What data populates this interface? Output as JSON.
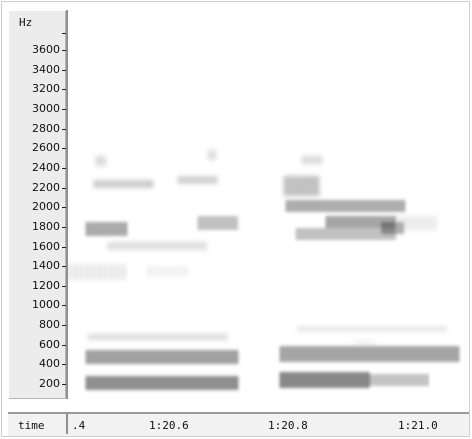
{
  "y_axis": {
    "unit": "Hz",
    "labels": [
      "3600",
      "3400",
      "3200",
      "3000",
      "2800",
      "2600",
      "2400",
      "2200",
      "2000",
      "1800",
      "1600",
      "1400",
      "1200",
      "1000",
      "800",
      "600",
      "400",
      "200"
    ]
  },
  "time_axis": {
    "title": "time",
    "labels": [
      ".4",
      "1:20.6",
      "1:20.8",
      "1:21.0"
    ]
  }
}
